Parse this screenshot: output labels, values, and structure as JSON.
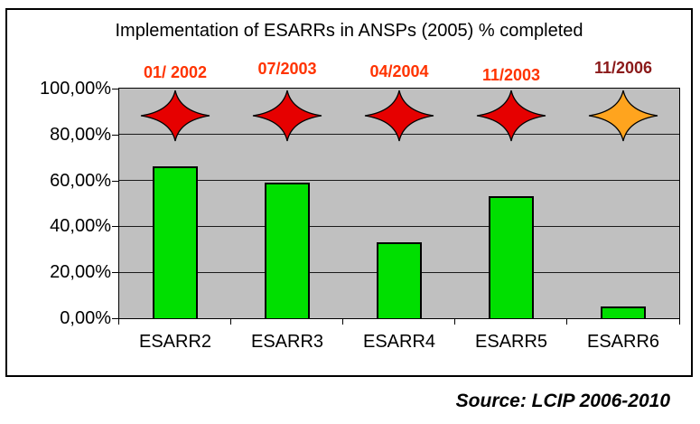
{
  "source": "Source: LCIP 2006-2010",
  "colors": {
    "frame_border": "#000000",
    "plot_background": "#C0C0C0",
    "gridline": "#1a1a1a",
    "bar_fill": "#00DF00",
    "bar_border": "#000000",
    "red_star": "#E60000",
    "orange_star": "#FFA41E",
    "date_red": "#FF3300",
    "date_dark_red": "#8B1A1A",
    "text": "#000000"
  },
  "chart_data": {
    "type": "bar",
    "title": "Implementation of ESARRs in ANSPs (2005) % completed",
    "categories": [
      "ESARR2",
      "ESARR3",
      "ESARR4",
      "ESARR5",
      "ESARR6"
    ],
    "values": [
      66,
      59,
      33,
      53,
      5
    ],
    "xlabel": "",
    "ylabel": "",
    "ylim": [
      0,
      100
    ],
    "y_tick_values": [
      100,
      80,
      60,
      40,
      20,
      0
    ],
    "y_tick_labels": [
      "100,00%",
      "80,00%",
      "60,00%",
      "40,00%",
      "20,00%",
      "0,00%"
    ],
    "grid": true,
    "legend": "none",
    "plot_bg": "#C0C0C0",
    "bar_color": "#00DF00",
    "markers": {
      "shape": "4-point-star",
      "y_value": 88,
      "items": [
        {
          "category": "ESARR2",
          "date": "01/ 2002",
          "star_color": "#E60000",
          "date_color": "#FF3300"
        },
        {
          "category": "ESARR3",
          "date": "07/2003",
          "star_color": "#E60000",
          "date_color": "#FF3300"
        },
        {
          "category": "ESARR4",
          "date": "04/2004",
          "star_color": "#E60000",
          "date_color": "#FF3300"
        },
        {
          "category": "ESARR5",
          "date": "11/2003",
          "star_color": "#E60000",
          "date_color": "#FF3300"
        },
        {
          "category": "ESARR6",
          "date": "11/2006",
          "star_color": "#FFA41E",
          "date_color": "#8B1A1A"
        }
      ]
    }
  }
}
